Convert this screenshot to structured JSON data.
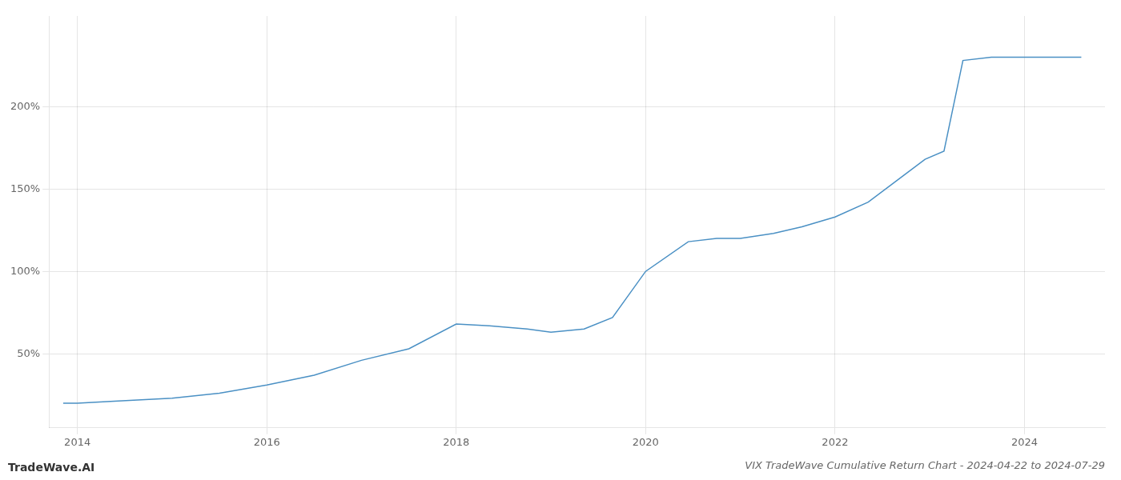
{
  "chart_data": {
    "type": "line",
    "title": "VIX TradeWave Cumulative Return Chart - 2024-04-22 to 2024-07-29",
    "annotations": [
      "TradeWave.AI"
    ],
    "x": [
      2013.85,
      2014.0,
      2014.35,
      2015.0,
      2015.5,
      2016.0,
      2016.5,
      2017.0,
      2017.5,
      2018.0,
      2018.35,
      2018.75,
      2019.0,
      2019.35,
      2019.65,
      2020.0,
      2020.45,
      2020.75,
      2021.0,
      2021.35,
      2021.65,
      2022.0,
      2022.35,
      2022.65,
      2022.95,
      2023.15,
      2023.35,
      2023.65,
      2024.0,
      2024.35,
      2024.6
    ],
    "values": [
      20,
      20,
      21,
      23,
      26,
      31,
      37,
      46,
      53,
      68,
      67,
      65,
      63,
      65,
      72,
      100,
      118,
      120,
      120,
      123,
      127,
      133,
      142,
      155,
      168,
      173,
      228,
      230,
      230,
      230,
      230
    ],
    "color": "#4a90c4",
    "xlim": [
      2013.7,
      2024.85
    ],
    "xticks": [
      2014,
      2016,
      2018,
      2020,
      2022,
      2024
    ],
    "ylim": [
      5,
      255
    ],
    "yticks": [
      {
        "value": 50,
        "label": "50%"
      },
      {
        "value": 100,
        "label": "100%"
      },
      {
        "value": 150,
        "label": "150%"
      },
      {
        "value": 200,
        "label": "200%"
      }
    ],
    "grid": true
  }
}
